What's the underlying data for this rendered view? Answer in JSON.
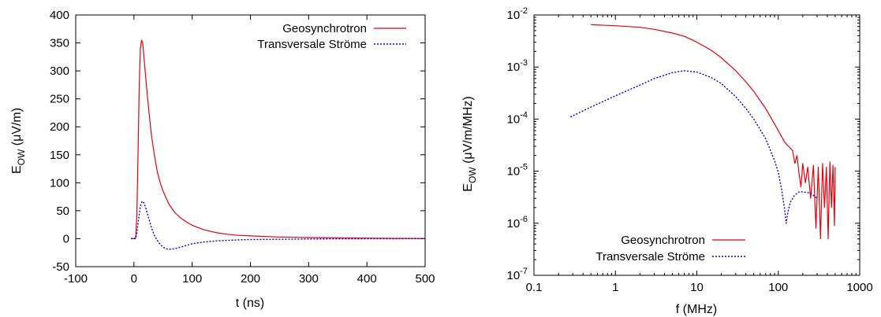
{
  "chart_data": [
    {
      "type": "line",
      "title": "",
      "xlabel": "t (ns)",
      "ylabel": {
        "main": "E",
        "sub": "OW",
        "unit": " (μV/m)"
      },
      "xlim": [
        -100,
        500
      ],
      "ylim": [
        -50,
        400
      ],
      "x_ticks": [
        -100,
        0,
        100,
        200,
        300,
        400,
        500
      ],
      "x_tick_labels": [
        "-100",
        "0",
        "100",
        "200",
        "300",
        "400",
        "500"
      ],
      "y_ticks": [
        -50,
        0,
        50,
        100,
        150,
        200,
        250,
        300,
        350,
        400
      ],
      "y_tick_labels": [
        "-50",
        "0",
        "50",
        "100",
        "150",
        "200",
        "250",
        "300",
        "350",
        "400"
      ],
      "legend": "top-right",
      "grid": false,
      "series": [
        {
          "name": "Geosynchrotron",
          "color": "#e8000b",
          "dash": "solid",
          "x": [
            -5,
            0,
            3,
            5,
            7,
            9,
            11,
            13,
            15,
            18,
            21,
            25,
            30,
            35,
            40,
            45,
            50,
            60,
            70,
            80,
            90,
            100,
            120,
            140,
            160,
            180,
            200,
            250,
            300,
            350,
            400,
            450,
            500
          ],
          "y": [
            0,
            0,
            2,
            40,
            150,
            270,
            340,
            355,
            350,
            315,
            280,
            235,
            185,
            150,
            120,
            100,
            85,
            62,
            47,
            37,
            30,
            24,
            16,
            11,
            8,
            6,
            5,
            3,
            2,
            1.5,
            1,
            0.5,
            0.3
          ]
        },
        {
          "name": "Transversale Ströme",
          "color": "#0000d8",
          "dash": "dotted",
          "x": [
            -5,
            0,
            3,
            5,
            8,
            11,
            14,
            17,
            20,
            25,
            30,
            35,
            40,
            45,
            50,
            55,
            60,
            70,
            80,
            90,
            100,
            120,
            140,
            160,
            180,
            200,
            250,
            300,
            400,
            500
          ],
          "y": [
            0,
            0,
            0,
            10,
            35,
            58,
            67,
            64,
            56,
            38,
            20,
            6,
            -3,
            -10,
            -15,
            -18,
            -19,
            -18,
            -15,
            -12,
            -9,
            -6,
            -4,
            -3,
            -2,
            -1.5,
            -1,
            -0.5,
            -0.2,
            0
          ]
        }
      ]
    },
    {
      "type": "line",
      "title": "",
      "xlabel": "f (MHz)",
      "ylabel": {
        "main": "E",
        "sub": "OW",
        "unit": " (μV/m/MHz)"
      },
      "xscale": "log",
      "yscale": "log",
      "xlim": [
        0.1,
        1000
      ],
      "ylim": [
        1e-07,
        0.01
      ],
      "x_ticks": [
        0.1,
        1,
        10,
        100,
        1000
      ],
      "x_tick_labels": [
        "0.1",
        "1",
        "10",
        "100",
        "1000"
      ],
      "y_ticks": [
        1e-07,
        1e-06,
        1e-05,
        0.0001,
        0.001,
        0.01
      ],
      "y_tick_labels": [
        {
          "base": "10",
          "exp": "-7"
        },
        {
          "base": "10",
          "exp": "-6"
        },
        {
          "base": "10",
          "exp": "-5"
        },
        {
          "base": "10",
          "exp": "-4"
        },
        {
          "base": "10",
          "exp": "-3"
        },
        {
          "base": "10",
          "exp": "-2"
        }
      ],
      "legend": "bottom-center",
      "grid": false,
      "series": [
        {
          "name": "Geosynchrotron",
          "color": "#e8000b",
          "dash": "solid",
          "x": [
            0.5,
            1,
            2,
            3,
            5,
            7,
            10,
            15,
            20,
            30,
            40,
            50,
            70,
            100,
            120,
            140,
            150,
            160,
            170,
            180,
            190,
            200,
            215,
            230,
            250,
            270,
            290,
            310,
            330,
            350,
            370,
            390,
            410,
            430,
            450,
            470,
            490,
            500
          ],
          "y": [
            0.0065,
            0.0062,
            0.0058,
            0.0053,
            0.0045,
            0.0039,
            0.003,
            0.0021,
            0.0015,
            0.00085,
            0.00052,
            0.00034,
            0.00016,
            6e-05,
            3.6e-05,
            2.8e-05,
            2.5e-05,
            1.4e-05,
            2e-05,
            9e-06,
            5e-06,
            1.4e-05,
            6e-06,
            1.2e-05,
            3e-06,
            1.3e-05,
            8e-07,
            1.2e-05,
            5e-07,
            1.4e-05,
            2e-06,
            1.2e-05,
            5e-07,
            1.5e-05,
            2e-06,
            1.3e-05,
            9e-07,
            1.2e-05
          ]
        },
        {
          "name": "Transversale Ströme",
          "color": "#0000d8",
          "dash": "dotted",
          "x": [
            0.28,
            0.5,
            1,
            2,
            3,
            5,
            7,
            10,
            15,
            20,
            30,
            40,
            50,
            70,
            90,
            100,
            110,
            120,
            125,
            130,
            140,
            160,
            180,
            200,
            250,
            300
          ],
          "y": [
            0.00011,
            0.00017,
            0.00028,
            0.00045,
            0.0006,
            0.00078,
            0.00085,
            0.0008,
            0.00063,
            0.00048,
            0.00027,
            0.00016,
            0.0001,
            4.2e-05,
            1.6e-05,
            9.5e-06,
            4.5e-06,
            1.8e-06,
            1e-06,
            1.5e-06,
            2.5e-06,
            3.5e-06,
            4e-06,
            4e-06,
            3.8e-06,
            3e-06
          ]
        }
      ]
    }
  ]
}
